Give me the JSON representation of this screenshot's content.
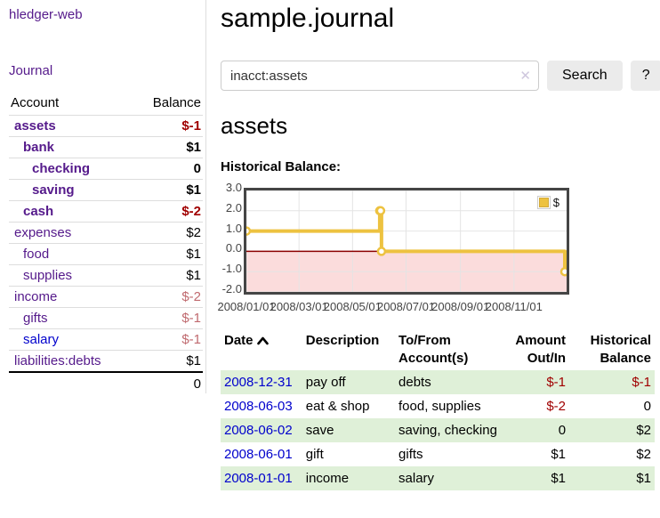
{
  "app": {
    "brand": "hledger-web",
    "nav_journal": "Journal"
  },
  "colors": {
    "link_purple": "#551a8b",
    "link_blue": "#0000cc",
    "negative_strong": "#a00000",
    "negative_soft": "#c06a6f",
    "row_stripe_green": "#dff0d8",
    "series_gold": "#edc240",
    "negative_region_pink": "#fbdcdc",
    "zero_line_red": "#8b0000",
    "grid_gray": "#e4e4e4"
  },
  "sidebar": {
    "headers": {
      "account": "Account",
      "balance": "Balance"
    },
    "accounts": [
      {
        "name": "assets",
        "balance": "$-1",
        "indent": 0,
        "bold": true,
        "negative": true,
        "blue": false
      },
      {
        "name": "bank",
        "balance": "$1",
        "indent": 1,
        "bold": true,
        "negative": false,
        "blue": false
      },
      {
        "name": "checking",
        "balance": "0",
        "indent": 2,
        "bold": true,
        "negative": false,
        "blue": false
      },
      {
        "name": "saving",
        "balance": "$1",
        "indent": 2,
        "bold": true,
        "negative": false,
        "blue": false
      },
      {
        "name": "cash",
        "balance": "$-2",
        "indent": 1,
        "bold": true,
        "negative": true,
        "blue": false
      },
      {
        "name": "expenses",
        "balance": "$2",
        "indent": 0,
        "bold": false,
        "negative": false,
        "blue": false
      },
      {
        "name": "food",
        "balance": "$1",
        "indent": 1,
        "bold": false,
        "negative": false,
        "blue": false
      },
      {
        "name": "supplies",
        "balance": "$1",
        "indent": 1,
        "bold": false,
        "negative": false,
        "blue": false
      },
      {
        "name": "income",
        "balance": "$-2",
        "indent": 0,
        "bold": false,
        "negative": true,
        "blue": false
      },
      {
        "name": "gifts",
        "balance": "$-1",
        "indent": 1,
        "bold": false,
        "negative": true,
        "blue": false
      },
      {
        "name": "salary",
        "balance": "$-1",
        "indent": 1,
        "bold": false,
        "negative": true,
        "blue": true
      },
      {
        "name": "liabilities:debts",
        "balance": "$1",
        "indent": 0,
        "bold": false,
        "negative": false,
        "blue": false
      }
    ],
    "total": "0"
  },
  "header": {
    "title": "sample.journal"
  },
  "search": {
    "value": "inacct:assets",
    "clear_icon": "✕",
    "search_label": "Search",
    "help_label": "?"
  },
  "account_page": {
    "title": "assets",
    "chart_heading": "Historical Balance:"
  },
  "chart_data": {
    "type": "line",
    "step": true,
    "title": "Historical Balance",
    "legend": "$",
    "legend_position": "top-right",
    "grid": true,
    "x_range": [
      "2008-01-01",
      "2008-12-31"
    ],
    "ylim": [
      -2,
      3
    ],
    "yticks": [
      "3.0",
      "2.0",
      "1.0",
      "0.0",
      "-1.0",
      "-2.0"
    ],
    "xticks": [
      "2008/01/01",
      "2008/03/01",
      "2008/05/01",
      "2008/07/01",
      "2008/09/01",
      "2008/11/01"
    ],
    "series": [
      {
        "name": "$",
        "points": [
          {
            "x": "2008-01-01",
            "y": 1
          },
          {
            "x": "2008-06-01",
            "y": 2
          },
          {
            "x": "2008-06-02",
            "y": 2
          },
          {
            "x": "2008-06-03",
            "y": 0
          },
          {
            "x": "2008-12-31",
            "y": -1
          }
        ]
      }
    ],
    "negative_region": {
      "from": -2,
      "to": 0
    }
  },
  "register": {
    "columns": {
      "date": "Date",
      "description": "Description",
      "accounts": "To/From Account(s)",
      "amount": "Amount Out/In",
      "balance": "Historical Balance"
    },
    "sort_icon": "chevron-up",
    "rows": [
      {
        "date": "2008-12-31",
        "description": "pay off",
        "accounts": "debts",
        "amount": "$-1",
        "amount_negative": true,
        "balance": "$-1",
        "balance_negative": true,
        "shaded": true
      },
      {
        "date": "2008-06-03",
        "description": "eat & shop",
        "accounts": "food, supplies",
        "amount": "$-2",
        "amount_negative": true,
        "balance": "0",
        "balance_negative": false,
        "shaded": false
      },
      {
        "date": "2008-06-02",
        "description": "save",
        "accounts": "saving, checking",
        "amount": "0",
        "amount_negative": false,
        "balance": "$2",
        "balance_negative": false,
        "shaded": true
      },
      {
        "date": "2008-06-01",
        "description": "gift",
        "accounts": "gifts",
        "amount": "$1",
        "amount_negative": false,
        "balance": "$2",
        "balance_negative": false,
        "shaded": false
      },
      {
        "date": "2008-01-01",
        "description": "income",
        "accounts": "salary",
        "amount": "$1",
        "amount_negative": false,
        "balance": "$1",
        "balance_negative": false,
        "shaded": true
      }
    ]
  }
}
